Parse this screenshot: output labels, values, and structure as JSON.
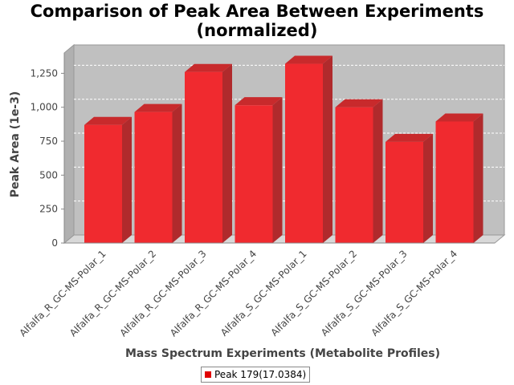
{
  "chart_data": {
    "type": "bar",
    "title": "Comparison of Peak Area Between Experiments\n(normalized)",
    "title_lines": [
      "Comparison of Peak Area Between Experiments",
      "(normalized)"
    ],
    "xlabel": "Mass Spectrum Experiments (Metabolite Profiles)",
    "ylabel": "Peak Area (1e-3)",
    "ylim": [
      0,
      1400
    ],
    "yticks": [
      0,
      250,
      500,
      750,
      1000,
      1250
    ],
    "ytick_labels": [
      "0",
      "250",
      "500",
      "750",
      "1,000",
      "1,250"
    ],
    "categories": [
      "Alfalfa_R_GC-MS-Polar_1",
      "Alfalfa_R_GC-MS-Polar_2",
      "Alfalfa_R_GC-MS-Polar_3",
      "Alfalfa_R_GC-MS-Polar_4",
      "Alfalfa_S_GC-MS-Polar_1",
      "Alfalfa_S_GC-MS-Polar_2",
      "Alfalfa_S_GC-MS-Polar_3",
      "Alfalfa_S_GC-MS-Polar_4"
    ],
    "series": [
      {
        "name": "Peak 179(17.0384)",
        "values": [
          870,
          965,
          1260,
          1015,
          1320,
          1000,
          745,
          895
        ]
      }
    ],
    "grid": true,
    "legend_position": "bottom",
    "colors": {
      "bar_front": "#f02a2f",
      "bar_side": "#b02a2c",
      "bar_top": "#c82a2c",
      "plot_bg": "#c0c0c0",
      "legend_swatch": "#e00000"
    }
  }
}
